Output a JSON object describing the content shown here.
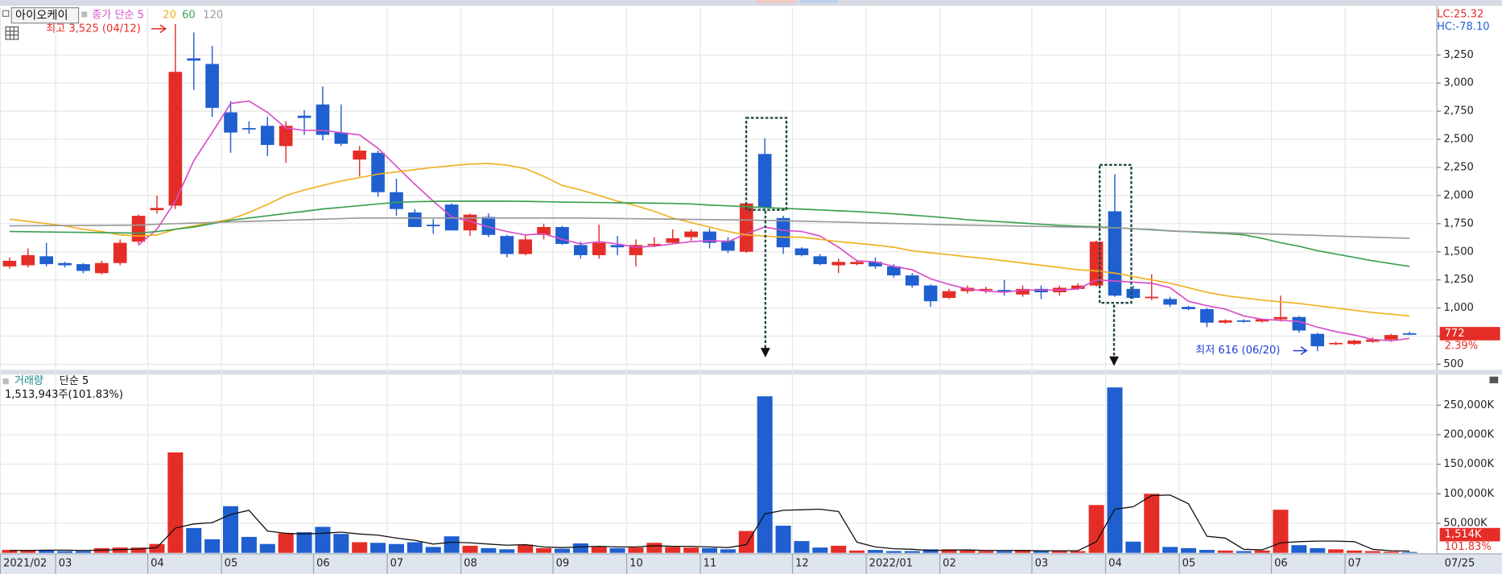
{
  "chart_data": [
    {
      "type": "candlestick",
      "title": "아이오케이",
      "categories": [
        "2021/02",
        null,
        null,
        "03",
        null,
        null,
        null,
        null,
        "04",
        null,
        null,
        null,
        "05",
        null,
        null,
        null,
        null,
        "06",
        null,
        null,
        null,
        "07",
        null,
        null,
        null,
        "08",
        null,
        null,
        null,
        null,
        "09",
        null,
        null,
        null,
        "10",
        null,
        null,
        null,
        "11",
        null,
        null,
        null,
        null,
        "12",
        null,
        null,
        null,
        "2022/01",
        null,
        null,
        null,
        "02",
        null,
        null,
        null,
        null,
        "03",
        null,
        null,
        null,
        "04",
        null,
        null,
        null,
        "05",
        null,
        null,
        null,
        null,
        "06",
        null,
        null,
        null,
        "07",
        null,
        null,
        null
      ],
      "open": [
        1370,
        1380,
        1460,
        1400,
        1390,
        1310,
        1400,
        1590,
        1870,
        1910,
        3220,
        3170,
        2740,
        2600,
        2620,
        2440,
        2710,
        2810,
        2560,
        2320,
        2380,
        2030,
        1850,
        1740,
        1920,
        1690,
        1810,
        1640,
        1480,
        1650,
        1720,
        1560,
        1470,
        1560,
        1470,
        1560,
        1580,
        1630,
        1680,
        1600,
        1500,
        2370,
        1800,
        1530,
        1460,
        1380,
        1390,
        1410,
        1370,
        1290,
        1200,
        1090,
        1150,
        1160,
        1160,
        1120,
        1170,
        1140,
        1170,
        1200,
        1860,
        1170,
        1090,
        1080,
        1010,
        990,
        870,
        890,
        880,
        900,
        920,
        770,
        680,
        680,
        700,
        720,
        775
      ],
      "high": [
        1450,
        1530,
        1580,
        1410,
        1400,
        1420,
        1610,
        1830,
        2000,
        3525,
        3450,
        3330,
        2840,
        2660,
        2700,
        2660,
        2760,
        2970,
        2810,
        2440,
        2400,
        2150,
        1880,
        1790,
        1930,
        1840,
        1840,
        1650,
        1650,
        1750,
        1730,
        1590,
        1740,
        1640,
        1610,
        1630,
        1700,
        1700,
        1710,
        1630,
        1940,
        2510,
        1820,
        1540,
        1480,
        1440,
        1430,
        1450,
        1390,
        1310,
        1210,
        1170,
        1200,
        1190,
        1250,
        1200,
        1200,
        1200,
        1220,
        1600,
        2190,
        1200,
        1300,
        1100,
        1020,
        1000,
        900,
        900,
        900,
        1110,
        930,
        780,
        700,
        720,
        740,
        770,
        790
      ],
      "low": [
        1350,
        1360,
        1370,
        1360,
        1310,
        1300,
        1380,
        1560,
        1840,
        1880,
        2940,
        2700,
        2380,
        2550,
        2350,
        2290,
        2540,
        2490,
        2440,
        2170,
        1990,
        1820,
        1720,
        1660,
        1690,
        1640,
        1630,
        1450,
        1470,
        1610,
        1560,
        1440,
        1440,
        1470,
        1370,
        1540,
        1570,
        1600,
        1530,
        1490,
        1490,
        1880,
        1480,
        1460,
        1380,
        1310,
        1380,
        1350,
        1270,
        1180,
        1010,
        1080,
        1130,
        1130,
        1110,
        1100,
        1080,
        1110,
        1160,
        1190,
        1100,
        1080,
        1070,
        1010,
        980,
        830,
        860,
        870,
        870,
        880,
        780,
        616,
        670,
        670,
        690,
        700,
        760
      ],
      "close": [
        1420,
        1470,
        1390,
        1380,
        1330,
        1400,
        1580,
        1820,
        1890,
        3100,
        3200,
        2780,
        2560,
        2590,
        2450,
        2620,
        2690,
        2540,
        2460,
        2400,
        2030,
        1880,
        1720,
        1730,
        1690,
        1830,
        1650,
        1480,
        1610,
        1720,
        1570,
        1470,
        1580,
        1540,
        1560,
        1570,
        1620,
        1680,
        1580,
        1510,
        1930,
        1890,
        1540,
        1470,
        1390,
        1410,
        1410,
        1370,
        1290,
        1200,
        1060,
        1150,
        1180,
        1170,
        1150,
        1170,
        1140,
        1180,
        1200,
        1590,
        1110,
        1090,
        1100,
        1030,
        990,
        870,
        890,
        880,
        900,
        920,
        800,
        660,
        690,
        710,
        720,
        760,
        772
      ],
      "up_color": "#e52d27",
      "down_color": "#1f5fcf",
      "series": [
        {
          "name": "종가 단순 5",
          "color": "#d84ec8",
          "values": [
            null,
            null,
            null,
            null,
            null,
            null,
            null,
            1560,
            1700,
            1950,
            2310,
            2560,
            2820,
            2840,
            2740,
            2600,
            2580,
            2580,
            2560,
            2540,
            2420,
            2260,
            2100,
            1950,
            1810,
            1770,
            1720,
            1680,
            1650,
            1660,
            1610,
            1570,
            1590,
            1570,
            1540,
            1550,
            1570,
            1590,
            1600,
            1590,
            1660,
            1720,
            1690,
            1680,
            1640,
            1540,
            1420,
            1410,
            1370,
            1340,
            1260,
            1210,
            1170,
            1150,
            1140,
            1160,
            1160,
            1160,
            1170,
            1250,
            1240,
            1230,
            1220,
            1180,
            1060,
            1020,
            990,
            930,
            900,
            890,
            880,
            830,
            790,
            760,
            720,
            710,
            730
          ]
        },
        {
          "name": "20",
          "color": "#f0b020",
          "values": [
            1790,
            1770,
            1750,
            1730,
            1700,
            1680,
            1650,
            1640,
            1650,
            1700,
            1730,
            1760,
            1790,
            1850,
            1920,
            2000,
            2050,
            2090,
            2130,
            2160,
            2190,
            2210,
            2230,
            2250,
            2265,
            2280,
            2285,
            2270,
            2240,
            2170,
            2090,
            2050,
            2000,
            1950,
            1910,
            1860,
            1800,
            1760,
            1720,
            1680,
            1650,
            1640,
            1630,
            1630,
            1610,
            1590,
            1575,
            1560,
            1540,
            1510,
            1490,
            1475,
            1455,
            1440,
            1420,
            1400,
            1380,
            1360,
            1340,
            1330,
            1310,
            1280,
            1250,
            1220,
            1180,
            1140,
            1110,
            1090,
            1070,
            1055,
            1040,
            1020,
            1000,
            980,
            960,
            945,
            930
          ]
        },
        {
          "name": "60",
          "color": "#3aa050",
          "values": [
            1680,
            1678,
            1676,
            1674,
            1672,
            1670,
            1668,
            1666,
            1680,
            1700,
            1720,
            1750,
            1780,
            1800,
            1820,
            1840,
            1860,
            1880,
            1895,
            1910,
            1925,
            1940,
            1945,
            1948,
            1950,
            1950,
            1950,
            1950,
            1948,
            1945,
            1942,
            1940,
            1938,
            1936,
            1934,
            1932,
            1930,
            1925,
            1915,
            1908,
            1900,
            1893,
            1886,
            1879,
            1872,
            1864,
            1857,
            1848,
            1838,
            1826,
            1814,
            1800,
            1785,
            1775,
            1765,
            1755,
            1745,
            1735,
            1728,
            1722,
            1715,
            1705,
            1695,
            1685,
            1678,
            1670,
            1662,
            1650,
            1620,
            1580,
            1550,
            1510,
            1480,
            1450,
            1420,
            1395,
            1370
          ]
        },
        {
          "name": "120",
          "color": "#9a9a9a",
          "values": [
            1730,
            1731,
            1732,
            1733,
            1734,
            1735,
            1736,
            1737,
            1745,
            1750,
            1755,
            1760,
            1765,
            1770,
            1775,
            1780,
            1785,
            1790,
            1795,
            1800,
            1800,
            1800,
            1800,
            1800,
            1800,
            1800,
            1800,
            1800,
            1800,
            1800,
            1800,
            1800,
            1798,
            1796,
            1794,
            1792,
            1790,
            1788,
            1786,
            1784,
            1782,
            1780,
            1776,
            1772,
            1768,
            1764,
            1760,
            1756,
            1752,
            1748,
            1744,
            1740,
            1737,
            1734,
            1731,
            1728,
            1725,
            1722,
            1719,
            1716,
            1713,
            1706,
            1700,
            1685,
            1680,
            1675,
            1670,
            1665,
            1660,
            1655,
            1650,
            1645,
            1640,
            1635,
            1630,
            1625,
            1620
          ]
        }
      ],
      "ylim": [
        450,
        3670
      ],
      "yticks": [
        500,
        750,
        {
          "value": 1000,
          "label": "1,000"
        },
        {
          "value": 1250,
          "label": "1,250"
        },
        {
          "value": 1500,
          "label": "1,500"
        },
        {
          "value": 1750,
          "label": "1,750"
        },
        {
          "value": 2000,
          "label": "2,000"
        },
        {
          "value": 2250,
          "label": "2,250"
        },
        {
          "value": 2500,
          "label": "2,500"
        },
        {
          "value": 2750,
          "label": "2,750"
        },
        {
          "value": 3000,
          "label": "3,000"
        },
        {
          "value": 3250,
          "label": "3,250"
        }
      ],
      "grid": true,
      "annotations": [
        "최고 3,525 (04/12)",
        "최저 616 (06/20)"
      ],
      "indicators": [
        "LC:25.32",
        "HC:-78.10"
      ],
      "last_label": "772",
      "change_label": "2.39%",
      "end_label": "07/25"
    },
    {
      "type": "bar",
      "title": "거래량",
      "subtitle": "1,513,943주(101.83%)",
      "values": [
        5000,
        5000,
        5000,
        3000,
        3000,
        8000,
        9000,
        9000,
        15000,
        170000,
        42000,
        23000,
        79000,
        27000,
        15000,
        33000,
        35000,
        44000,
        32000,
        18000,
        17000,
        15000,
        18000,
        10000,
        28000,
        12000,
        8000,
        6000,
        14000,
        8000,
        7000,
        16000,
        10000,
        8000,
        9000,
        17000,
        10000,
        9000,
        8000,
        6000,
        37000,
        265000,
        46000,
        20000,
        9000,
        12000,
        4000,
        5000,
        3000,
        3000,
        6000,
        6000,
        4000,
        3000,
        3000,
        5000,
        3000,
        3000,
        3000,
        81000,
        280000,
        19000,
        100000,
        10000,
        8000,
        5000,
        4000,
        3000,
        4000,
        73000,
        13000,
        8000,
        6000,
        4000,
        3000,
        2000,
        1514
      ],
      "series": [
        {
          "name": "단순 5",
          "color": "#111111",
          "values": [
            4000,
            4000,
            4500,
            4500,
            4000,
            4500,
            5500,
            6500,
            9000,
            42000,
            49000,
            51000,
            65000,
            72000,
            37000,
            33000,
            32000,
            33000,
            35000,
            32000,
            30000,
            25000,
            21000,
            15000,
            18000,
            17000,
            15000,
            13000,
            14000,
            10000,
            9000,
            10000,
            11000,
            10000,
            10000,
            12000,
            11000,
            11000,
            10000,
            9000,
            14000,
            66000,
            72000,
            73000,
            74000,
            70000,
            18000,
            10000,
            7000,
            6000,
            4000,
            4500,
            5000,
            4000,
            4000,
            4000,
            3500,
            3500,
            3500,
            19000,
            74000,
            78000,
            97000,
            98000,
            83000,
            28000,
            25000,
            6000,
            5000,
            17000,
            19000,
            20000,
            20000,
            19000,
            6000,
            3500,
            3000
          ]
        }
      ],
      "ylim": [
        0,
        300000
      ],
      "yticks": [
        {
          "value": 50000,
          "label": "50,000K"
        },
        {
          "value": 100000,
          "label": "100,000K"
        },
        {
          "value": 150000,
          "label": "150,000K"
        },
        {
          "value": 200000,
          "label": "200,000K"
        },
        {
          "value": 250000,
          "label": "250,000K"
        }
      ],
      "grid": true,
      "last_label": "1,514K",
      "change_label": "101.83%"
    }
  ]
}
